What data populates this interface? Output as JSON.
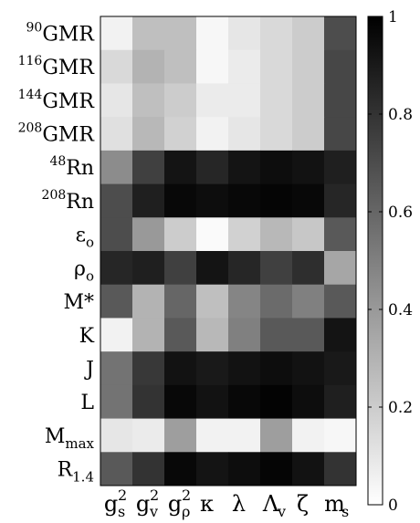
{
  "chart_data": {
    "type": "heatmap",
    "title": "",
    "xlabel": "",
    "ylabel": "",
    "columns": [
      {
        "main": "g",
        "sub": "s",
        "sup": "2"
      },
      {
        "main": "g",
        "sub": "v",
        "sup": "2"
      },
      {
        "main": "g",
        "sub": "ρ",
        "sup": "2"
      },
      {
        "main": "κ",
        "sub": "",
        "sup": ""
      },
      {
        "main": "λ",
        "sub": "",
        "sup": ""
      },
      {
        "main": "Λ",
        "sub": "v",
        "sup": ""
      },
      {
        "main": "ζ",
        "sub": "",
        "sup": ""
      },
      {
        "main": "m",
        "sub": "s",
        "sup": ""
      }
    ],
    "rows": [
      {
        "pre": "90",
        "main": "GMR",
        "sub": ""
      },
      {
        "pre": "116",
        "main": "GMR",
        "sub": ""
      },
      {
        "pre": "144",
        "main": "GMR",
        "sub": ""
      },
      {
        "pre": "208",
        "main": "GMR",
        "sub": ""
      },
      {
        "pre": "48",
        "main": "Rn",
        "sub": ""
      },
      {
        "pre": "208",
        "main": "Rn",
        "sub": ""
      },
      {
        "pre": "",
        "main": "ε",
        "sub": "o"
      },
      {
        "pre": "",
        "main": "ρ",
        "sub": "o"
      },
      {
        "pre": "",
        "main": "M*",
        "sub": ""
      },
      {
        "pre": "",
        "main": "K",
        "sub": ""
      },
      {
        "pre": "",
        "main": "J",
        "sub": ""
      },
      {
        "pre": "",
        "main": "L",
        "sub": ""
      },
      {
        "pre": "",
        "main": "M",
        "sub": "max"
      },
      {
        "pre": "",
        "main": "R",
        "sub": "1.4"
      }
    ],
    "values": [
      [
        0.05,
        0.25,
        0.25,
        0.03,
        0.1,
        0.15,
        0.2,
        0.7
      ],
      [
        0.15,
        0.3,
        0.25,
        0.03,
        0.08,
        0.15,
        0.2,
        0.72
      ],
      [
        0.1,
        0.25,
        0.2,
        0.08,
        0.08,
        0.15,
        0.2,
        0.72
      ],
      [
        0.12,
        0.28,
        0.18,
        0.05,
        0.1,
        0.15,
        0.2,
        0.72
      ],
      [
        0.45,
        0.75,
        0.92,
        0.85,
        0.92,
        0.95,
        0.93,
        0.88
      ],
      [
        0.7,
        0.88,
        0.97,
        0.95,
        0.97,
        0.98,
        0.97,
        0.85
      ],
      [
        0.7,
        0.4,
        0.2,
        0.02,
        0.18,
        0.28,
        0.22,
        0.65
      ],
      [
        0.85,
        0.88,
        0.75,
        0.92,
        0.85,
        0.75,
        0.82,
        0.35
      ],
      [
        0.65,
        0.3,
        0.6,
        0.25,
        0.48,
        0.58,
        0.5,
        0.65
      ],
      [
        0.05,
        0.3,
        0.65,
        0.28,
        0.5,
        0.65,
        0.65,
        0.92
      ],
      [
        0.55,
        0.78,
        0.93,
        0.9,
        0.93,
        0.95,
        0.93,
        0.9
      ],
      [
        0.55,
        0.8,
        0.97,
        0.93,
        0.97,
        0.99,
        0.95,
        0.88
      ],
      [
        0.1,
        0.08,
        0.38,
        0.05,
        0.05,
        0.38,
        0.05,
        0.03
      ],
      [
        0.65,
        0.8,
        0.97,
        0.92,
        0.95,
        0.98,
        0.93,
        0.8
      ]
    ],
    "colorbar": {
      "min": 0,
      "max": 1,
      "ticks": [
        "0",
        "0.2",
        "0.4",
        "0.6",
        "0.8",
        "1"
      ],
      "tick_values": [
        0,
        0.2,
        0.4,
        0.6,
        0.8,
        1
      ],
      "colormap": "white-to-black"
    }
  }
}
